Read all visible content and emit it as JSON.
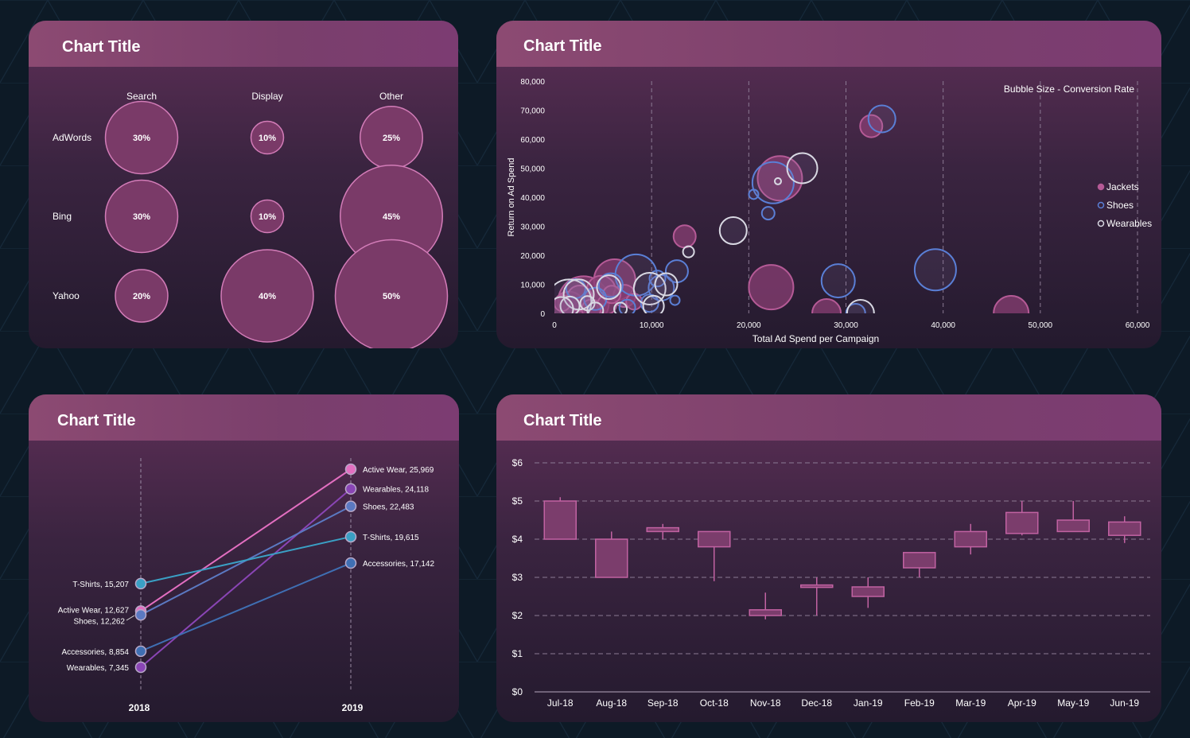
{
  "colors": {
    "background": "#0d1a26",
    "accent_pink": "#c162a2",
    "bubble_fill": "#7a3a68",
    "bubble_stroke": "#d37cb8",
    "jackets": "#b55a96",
    "shoes": "#5a7fd6",
    "wearables": "#d9d9e3",
    "active_wear": "#e36fc1",
    "wearables_line": "#8a45b5",
    "shoes_line": "#5b79c2",
    "tshirts_line": "#3aa0c5",
    "accessories_line": "#3f6fb3"
  },
  "panels": {
    "matrix": {
      "title": "Chart Title"
    },
    "scatter": {
      "title": "Chart Title"
    },
    "slope": {
      "title": "Chart Title"
    },
    "candle": {
      "title": "Chart Title"
    }
  },
  "chart_data": [
    {
      "type": "bubble-matrix",
      "title": "Chart Title",
      "columns": [
        "Search",
        "Display",
        "Other"
      ],
      "rows": [
        {
          "name": "AdWords",
          "values": [
            30,
            10,
            25
          ],
          "labels": [
            "30%",
            "10%",
            "25%"
          ]
        },
        {
          "name": "Bing",
          "values": [
            30,
            10,
            45
          ],
          "labels": [
            "30%",
            "10%",
            "45%"
          ]
        },
        {
          "name": "Yahoo",
          "values": [
            20,
            40,
            50
          ],
          "labels": [
            "20%",
            "40%",
            "50%"
          ]
        }
      ]
    },
    {
      "type": "scatter",
      "title": "Chart Title",
      "xlabel": "Total Ad Spend per Campaign",
      "ylabel": "Return on Ad Spend",
      "annotation": "Bubble Size - Conversion Rate",
      "xlim": [
        0,
        60000
      ],
      "ylim": [
        0,
        80000
      ],
      "xticks": [
        "0",
        "10,000",
        "20,000",
        "30,000",
        "40,000",
        "50,000",
        "60,000"
      ],
      "yticks": [
        "0",
        "10,000",
        "20,000",
        "30,000",
        "40,000",
        "50,000",
        "60,000",
        "70,000",
        "80,000"
      ],
      "grid": "vertical dashed",
      "legend": "right",
      "series": [
        {
          "name": "Jackets",
          "color": "#b55a96",
          "points": [
            {
              "x": 3000,
              "y": 4000,
              "s": 3.2
            },
            {
              "x": 6200,
              "y": 11500,
              "s": 2.6
            },
            {
              "x": 1500,
              "y": 2000,
              "s": 2.0
            },
            {
              "x": 4800,
              "y": 8000,
              "s": 1.8
            },
            {
              "x": 2600,
              "y": 5200,
              "s": 1.6
            },
            {
              "x": 7200,
              "y": 6000,
              "s": 1.4
            },
            {
              "x": 5400,
              "y": 3000,
              "s": 1.2
            },
            {
              "x": 8200,
              "y": 4000,
              "s": 1.0
            },
            {
              "x": 13400,
              "y": 26500,
              "s": 1.4
            },
            {
              "x": 23200,
              "y": 46500,
              "s": 2.8
            },
            {
              "x": 22300,
              "y": 9000,
              "s": 2.8
            },
            {
              "x": 32600,
              "y": 64500,
              "s": 1.4
            },
            {
              "x": 28000,
              "y": 0,
              "s": 1.8
            },
            {
              "x": 47000,
              "y": 0,
              "s": 2.2
            },
            {
              "x": 3800,
              "y": 1500,
              "s": 1.2
            },
            {
              "x": 800,
              "y": 3500,
              "s": 1.0
            },
            {
              "x": 5900,
              "y": 6500,
              "s": 1.1
            }
          ]
        },
        {
          "name": "Shoes",
          "color": "#5a7fd6",
          "points": [
            {
              "x": 8400,
              "y": 13200,
              "s": 2.6
            },
            {
              "x": 11000,
              "y": 8800,
              "s": 1.6
            },
            {
              "x": 12600,
              "y": 14500,
              "s": 1.4
            },
            {
              "x": 5800,
              "y": 9700,
              "s": 1.5
            },
            {
              "x": 22500,
              "y": 45000,
              "s": 2.6
            },
            {
              "x": 22000,
              "y": 34500,
              "s": 0.8
            },
            {
              "x": 20500,
              "y": 41000,
              "s": 0.6
            },
            {
              "x": 29200,
              "y": 11200,
              "s": 2.1
            },
            {
              "x": 33700,
              "y": 67000,
              "s": 1.7
            },
            {
              "x": 39200,
              "y": 15000,
              "s": 2.6
            },
            {
              "x": 31000,
              "y": 0,
              "s": 1.2
            },
            {
              "x": 9800,
              "y": 3500,
              "s": 1.1
            },
            {
              "x": 4200,
              "y": 5000,
              "s": 1.4
            },
            {
              "x": 12400,
              "y": 4500,
              "s": 0.6
            },
            {
              "x": 7500,
              "y": 2000,
              "s": 1.0
            },
            {
              "x": 2200,
              "y": 8500,
              "s": 1.2
            },
            {
              "x": 10600,
              "y": 12000,
              "s": 1.0
            }
          ]
        },
        {
          "name": "Wearables",
          "color": "#d9d9e3",
          "points": [
            {
              "x": 1500,
              "y": 4000,
              "s": 2.8
            },
            {
              "x": 2500,
              "y": 6500,
              "s": 1.9
            },
            {
              "x": 5600,
              "y": 9000,
              "s": 1.5
            },
            {
              "x": 9800,
              "y": 8500,
              "s": 2.0
            },
            {
              "x": 11500,
              "y": 10000,
              "s": 1.4
            },
            {
              "x": 18400,
              "y": 28500,
              "s": 1.7
            },
            {
              "x": 13800,
              "y": 21200,
              "s": 0.7
            },
            {
              "x": 25500,
              "y": 50000,
              "s": 1.9
            },
            {
              "x": 23000,
              "y": 45500,
              "s": 0.4
            },
            {
              "x": 31500,
              "y": 0,
              "s": 1.7
            },
            {
              "x": 1600,
              "y": 2500,
              "s": 1.2
            },
            {
              "x": 3400,
              "y": 3500,
              "s": 0.9
            },
            {
              "x": 6800,
              "y": 1500,
              "s": 0.8
            },
            {
              "x": 10200,
              "y": 2500,
              "s": 1.3
            },
            {
              "x": 4200,
              "y": 1000,
              "s": 1.0
            },
            {
              "x": 700,
              "y": 1500,
              "s": 1.5
            }
          ]
        }
      ]
    },
    {
      "type": "line",
      "title": "Chart Title",
      "categories": [
        "2018",
        "2019"
      ],
      "series": [
        {
          "name": "Active Wear",
          "values": [
            12627,
            25969
          ],
          "color": "#e36fc1",
          "label_left": "Active Wear, 12,627",
          "label_right": "Active Wear, 25,969"
        },
        {
          "name": "Wearables",
          "values": [
            7345,
            24118
          ],
          "color": "#8a45b5",
          "label_left": "Wearables, 7,345",
          "label_right": "Wearables, 24,118"
        },
        {
          "name": "Shoes",
          "values": [
            12262,
            22483
          ],
          "color": "#5b79c2",
          "label_left": "Shoes, 12,262",
          "label_right": "Shoes, 22,483"
        },
        {
          "name": "T-Shirts",
          "values": [
            15207,
            19615
          ],
          "color": "#3aa0c5",
          "label_left": "T-Shirts, 15,207",
          "label_right": "T-Shirts, 19,615"
        },
        {
          "name": "Accessories",
          "values": [
            8854,
            17142
          ],
          "color": "#3f6fb3",
          "label_left": "Accessories, 8,854",
          "label_right": "Accessories, 17,142"
        }
      ]
    },
    {
      "type": "candlestick",
      "title": "Chart Title",
      "categories": [
        "Jul-18",
        "Aug-18",
        "Sep-18",
        "Oct-18",
        "Nov-18",
        "Dec-18",
        "Jan-19",
        "Feb-19",
        "Mar-19",
        "Apr-19",
        "May-19",
        "Jun-19"
      ],
      "ylim": [
        0,
        6
      ],
      "yticks": [
        "$0",
        "$1",
        "$2",
        "$3",
        "$4",
        "$5",
        "$6"
      ],
      "grid": "horizontal dashed",
      "ohlc": [
        {
          "o": 4.0,
          "h": 5.1,
          "l": 4.0,
          "c": 5.0
        },
        {
          "o": 3.0,
          "h": 4.2,
          "l": 3.0,
          "c": 4.0
        },
        {
          "o": 4.2,
          "h": 4.4,
          "l": 4.0,
          "c": 4.3
        },
        {
          "o": 3.8,
          "h": 4.2,
          "l": 2.9,
          "c": 4.2
        },
        {
          "o": 2.0,
          "h": 2.6,
          "l": 1.9,
          "c": 2.15
        },
        {
          "o": 2.75,
          "h": 3.0,
          "l": 2.0,
          "c": 2.8
        },
        {
          "o": 2.5,
          "h": 3.0,
          "l": 2.2,
          "c": 2.75
        },
        {
          "o": 3.25,
          "h": 3.6,
          "l": 3.0,
          "c": 3.65
        },
        {
          "o": 3.8,
          "h": 4.4,
          "l": 3.6,
          "c": 4.2
        },
        {
          "o": 4.15,
          "h": 5.0,
          "l": 4.1,
          "c": 4.7
        },
        {
          "o": 4.2,
          "h": 5.0,
          "l": 4.2,
          "c": 4.5
        },
        {
          "o": 4.1,
          "h": 4.6,
          "l": 3.9,
          "c": 4.45
        }
      ]
    }
  ]
}
